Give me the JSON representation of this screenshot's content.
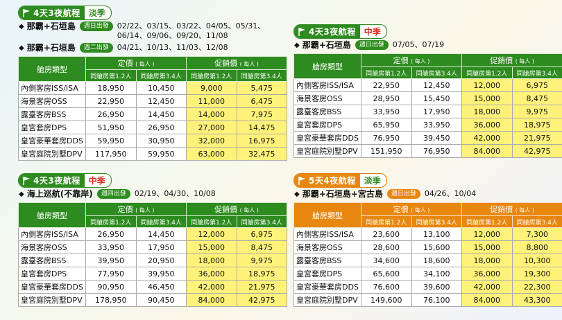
{
  "panels": [
    {
      "head_text": "4天3夜航程",
      "season": "淡季",
      "routes": [
        {
          "name": "那霸+石垣島",
          "day": "週日出發",
          "dates_line1": "02/22、03/15、03/22、04/05、05/31、",
          "dates_line2": "06/14、09/06、09/20、11/08"
        },
        {
          "name": "那霸+石垣島",
          "day": "週二出發",
          "dates_line1": "04/21、10/13、11/03、12/08",
          "dates_line2": ""
        }
      ],
      "rows": [
        [
          "內側客房ISS/ISA",
          "18,950",
          "10,450",
          "9,000",
          "5,475"
        ],
        [
          "海景客房OSS",
          "22,950",
          "12,450",
          "11,000",
          "6,475"
        ],
        [
          "露臺客房BSS",
          "26,950",
          "14,450",
          "14,000",
          "7,975"
        ],
        [
          "皇宮套房DPS",
          "51,950",
          "26,950",
          "27,000",
          "14,475"
        ],
        [
          "皇宮豪華套房DDS",
          "59,950",
          "30,950",
          "32,000",
          "16,975"
        ],
        [
          "皇宮庭院別墅DPV",
          "117,950",
          "59,950",
          "63,000",
          "32,475"
        ]
      ]
    },
    {
      "head_text": "4天3夜航程",
      "season": "中季",
      "routes": [
        {
          "name": "那霸+石垣島",
          "day": "週日出發",
          "dates_line1": "07/05、07/19",
          "dates_line2": ""
        }
      ],
      "rows": [
        [
          "內側客房ISS/ISA",
          "22,950",
          "12,450",
          "12,000",
          "6,975"
        ],
        [
          "海景客房OSS",
          "28,950",
          "15,450",
          "15,000",
          "8,475"
        ],
        [
          "露臺客房BSS",
          "33,950",
          "17,950",
          "18,000",
          "9,975"
        ],
        [
          "皇宮套房DPS",
          "65,950",
          "33,950",
          "36,000",
          "18,975"
        ],
        [
          "皇宮豪華套房DDS",
          "76,950",
          "39,450",
          "42,000",
          "21,975"
        ],
        [
          "皇宮庭院別墅DPV",
          "151,950",
          "76,950",
          "84,000",
          "42,975"
        ]
      ]
    },
    {
      "head_text": "4天3夜航程",
      "season": "中季",
      "routes": [
        {
          "name": "海上巡航(不靠岸)",
          "day": "週四出發",
          "dates_line1": "02/19、04/30、10/08",
          "dates_line2": ""
        }
      ],
      "rows": [
        [
          "內側客房ISS/ISA",
          "26,950",
          "14,450",
          "12,000",
          "6,975"
        ],
        [
          "海景客房OSS",
          "33,950",
          "17,950",
          "15,000",
          "8,475"
        ],
        [
          "露臺客房BSS",
          "39,950",
          "20,950",
          "18,000",
          "9,975"
        ],
        [
          "皇宮套房DPS",
          "77,950",
          "39,950",
          "36,000",
          "18,975"
        ],
        [
          "皇宮豪華套房DDS",
          "90,950",
          "46,450",
          "42,000",
          "21,975"
        ],
        [
          "皇宮庭院別墅DPV",
          "178,950",
          "90,450",
          "84,000",
          "42,975"
        ]
      ]
    },
    {
      "head_text": "5天4夜航程",
      "season": "淡季",
      "routes": [
        {
          "name": "那霸+石垣島+宮古島",
          "day": "週日出發",
          "dates_line1": "04/26、10/04",
          "dates_line2": ""
        }
      ],
      "rows": [
        [
          "內側客房ISS/ISA",
          "23,600",
          "13,100",
          "12,000",
          "7,300"
        ],
        [
          "海景客房OSS",
          "28,600",
          "15,600",
          "15,000",
          "8,800"
        ],
        [
          "露臺客房BSS",
          "34,600",
          "18,600",
          "18,000",
          "10,300"
        ],
        [
          "皇宮套房DPS",
          "65,600",
          "34,100",
          "36,000",
          "19,300"
        ],
        [
          "皇宮豪華套房DDS",
          "76,600",
          "39,600",
          "42,000",
          "22,300"
        ],
        [
          "皇宮庭院別墅DPV",
          "149,600",
          "76,100",
          "84,000",
          "43,300"
        ]
      ]
    }
  ],
  "table_header": {
    "room_type": "艙房類型",
    "list_price": "定價",
    "promo_price": "促銷價",
    "per_person": "( 每人 )",
    "occ12": "同艙房第1.2人",
    "occ34": "同艙房第3.4人"
  },
  "colors": {
    "green": "#2e8b1f",
    "orange": "#e8870f",
    "highlight": "#fff27a",
    "season_green": "#2e8b1f",
    "season_red": "#d62d1d"
  }
}
